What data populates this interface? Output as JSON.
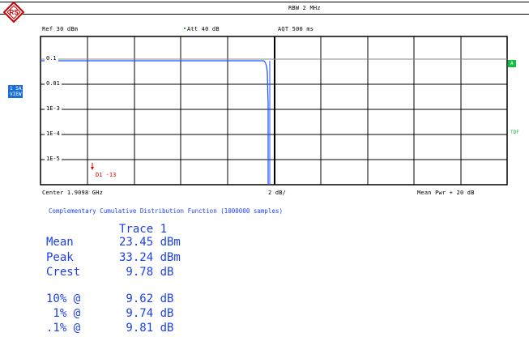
{
  "header": {
    "rbw": "RBW 2 MHz",
    "ref": "Ref  30 dBm",
    "att": "Att  40 dB",
    "aqt": "AQT 500 ms"
  },
  "side": {
    "mode_line1": "1 SA",
    "mode_line2": "VIEW",
    "trace_marker": "A",
    "tdf": "TDF"
  },
  "plot": {
    "y_labels": [
      "0.1",
      "0.01",
      "1E-3",
      "1E-4",
      "1E-5"
    ],
    "delta_marker": "D1 -13",
    "center": "Center 1.9098 GHz",
    "scale": "2 dB/",
    "mean_pwr": "Mean Pwr + 20 dB"
  },
  "title": "Complementary Cumulative Distribution Function (1000000 samples)",
  "results": {
    "trace_header": "Trace 1",
    "rows": [
      {
        "label": "Mean",
        "value": "23.45 dBm"
      },
      {
        "label": "Peak",
        "value": "33.24 dBm"
      },
      {
        "label": "Crest",
        "value": " 9.78 dB"
      }
    ],
    "percentiles": [
      {
        "label": "10% @",
        "value": " 9.62 dB"
      },
      {
        "label": " 1% @",
        "value": " 9.74 dB"
      },
      {
        "label": ".1% @",
        "value": " 9.81 dB"
      }
    ]
  },
  "colors": {
    "trace": "#2255ff",
    "text_blue": "#1b3ef0",
    "marker_green": "#10c040",
    "delta_red": "#dd0000"
  }
}
